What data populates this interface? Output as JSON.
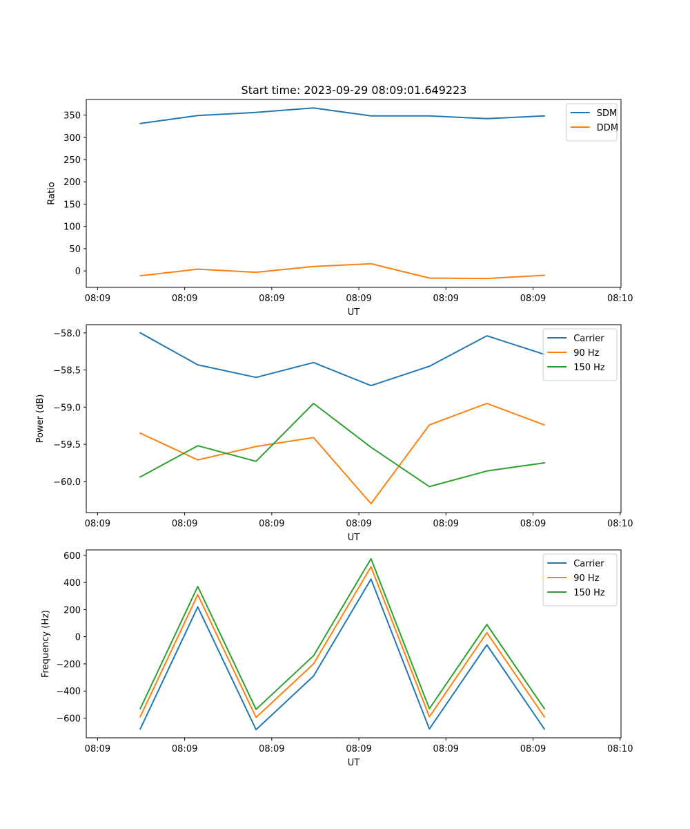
{
  "figure_title": "Start time: 2023-09-29 08:09:01.649223",
  "colors": {
    "c0": "#1f77b4",
    "c1": "#ff7f0e",
    "c2": "#2ca02c"
  },
  "chart_data": [
    {
      "type": "line",
      "title": "Start time: 2023-09-29 08:09:01.649223",
      "xlabel": "UT",
      "ylabel": "Ratio",
      "x": [
        0.9,
        1.4,
        1.9,
        2.4,
        2.9,
        3.4,
        3.9,
        4.4
      ],
      "xlim": [
        0.5,
        5.5
      ],
      "xticks": [
        0.61,
        1.61,
        2.61,
        3.61,
        4.61,
        5.61
      ],
      "xtick_labels": [
        "08:09",
        "08:09",
        "08:09",
        "08:09",
        "08:09",
        "08:09",
        "08:10"
      ],
      "xticks_all": [
        0.61,
        1.61,
        2.61,
        3.61,
        4.61,
        5.61,
        6.61
      ],
      "ylim": [
        -37,
        385
      ],
      "yticks": [
        0,
        50,
        100,
        150,
        200,
        250,
        300,
        350
      ],
      "ytick_labels": [
        "0",
        "50",
        "100",
        "150",
        "200",
        "250",
        "300",
        "350"
      ],
      "legend_position": "top-right",
      "series": [
        {
          "name": "SDM",
          "color": "#1f77b4",
          "values": [
            331,
            349,
            356,
            366,
            348,
            348,
            342,
            348
          ]
        },
        {
          "name": "DDM",
          "color": "#ff7f0e",
          "values": [
            -11,
            4,
            -3,
            10,
            16,
            -16,
            -17,
            -10
          ]
        }
      ]
    },
    {
      "type": "line",
      "title": "",
      "xlabel": "UT",
      "ylabel": "Power (dB)",
      "x": [
        0.9,
        1.4,
        1.9,
        2.4,
        2.9,
        3.4,
        3.9,
        4.4
      ],
      "xtick_labels": [
        "08:09",
        "08:09",
        "08:09",
        "08:09",
        "08:09",
        "08:09",
        "08:10"
      ],
      "ylim": [
        -60.42,
        -57.89
      ],
      "yticks": [
        -60.0,
        -59.5,
        -59.0,
        -58.5,
        -58.0
      ],
      "ytick_labels": [
        "−60.0",
        "−59.5",
        "−59.0",
        "−58.5",
        "−58.0"
      ],
      "legend_position": "top-right",
      "series": [
        {
          "name": "Carrier",
          "color": "#1f77b4",
          "values": [
            -58.0,
            -58.43,
            -58.6,
            -58.4,
            -58.71,
            -58.45,
            -58.04,
            -58.29
          ]
        },
        {
          "name": "90 Hz",
          "color": "#ff7f0e",
          "values": [
            -59.35,
            -59.71,
            -59.53,
            -59.41,
            -60.3,
            -59.24,
            -58.95,
            -59.24
          ]
        },
        {
          "name": "150 Hz",
          "color": "#2ca02c",
          "values": [
            -59.94,
            -59.52,
            -59.73,
            -58.95,
            -59.54,
            -60.07,
            -59.86,
            -59.75
          ]
        }
      ]
    },
    {
      "type": "line",
      "title": "",
      "xlabel": "UT",
      "ylabel": "Frequency (Hz)",
      "x": [
        0.9,
        1.4,
        1.9,
        2.4,
        2.9,
        3.4,
        3.9,
        4.4
      ],
      "xtick_labels": [
        "08:09",
        "08:09",
        "08:09",
        "08:09",
        "08:09",
        "08:09",
        "08:10"
      ],
      "ylim": [
        -745,
        640
      ],
      "yticks": [
        -600,
        -400,
        -200,
        0,
        200,
        400,
        600
      ],
      "ytick_labels": [
        "−600",
        "−400",
        "−200",
        "0",
        "200",
        "400",
        "600"
      ],
      "legend_position": "top-right",
      "series": [
        {
          "name": "Carrier",
          "color": "#1f77b4",
          "values": [
            -680,
            220,
            -685,
            -290,
            425,
            -680,
            -60,
            -680
          ]
        },
        {
          "name": "90 Hz",
          "color": "#ff7f0e",
          "values": [
            -590,
            310,
            -595,
            -200,
            515,
            -590,
            30,
            -590
          ]
        },
        {
          "name": "150 Hz",
          "color": "#2ca02c",
          "values": [
            -530,
            370,
            -535,
            -140,
            575,
            -530,
            90,
            -530
          ]
        }
      ]
    }
  ]
}
